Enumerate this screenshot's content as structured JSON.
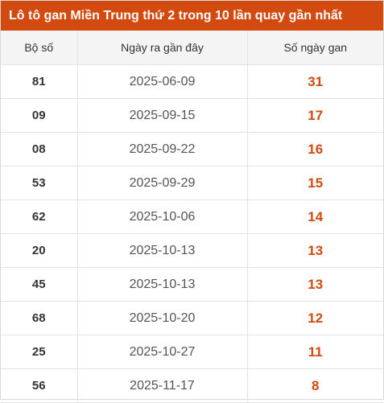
{
  "title": "Lô tô gan Miền Trung thứ 2 trong 10 lần quay gần nhất",
  "colors": {
    "accent": "#d24a0f",
    "header_bg": "#f4f4f4"
  },
  "table": {
    "headers": [
      "Bộ số",
      "Ngày ra gần đây",
      "Số ngày gan"
    ],
    "rows": [
      {
        "so": "81",
        "ngay": "2025-06-09",
        "gan": "31"
      },
      {
        "so": "09",
        "ngay": "2025-09-15",
        "gan": "17"
      },
      {
        "so": "08",
        "ngay": "2025-09-22",
        "gan": "16"
      },
      {
        "so": "53",
        "ngay": "2025-09-29",
        "gan": "15"
      },
      {
        "so": "62",
        "ngay": "2025-10-06",
        "gan": "14"
      },
      {
        "so": "20",
        "ngay": "2025-10-13",
        "gan": "13"
      },
      {
        "so": "45",
        "ngay": "2025-10-13",
        "gan": "13"
      },
      {
        "so": "68",
        "ngay": "2025-10-20",
        "gan": "12"
      },
      {
        "so": "25",
        "ngay": "2025-10-27",
        "gan": "11"
      },
      {
        "so": "56",
        "ngay": "2025-11-17",
        "gan": "8"
      }
    ]
  }
}
